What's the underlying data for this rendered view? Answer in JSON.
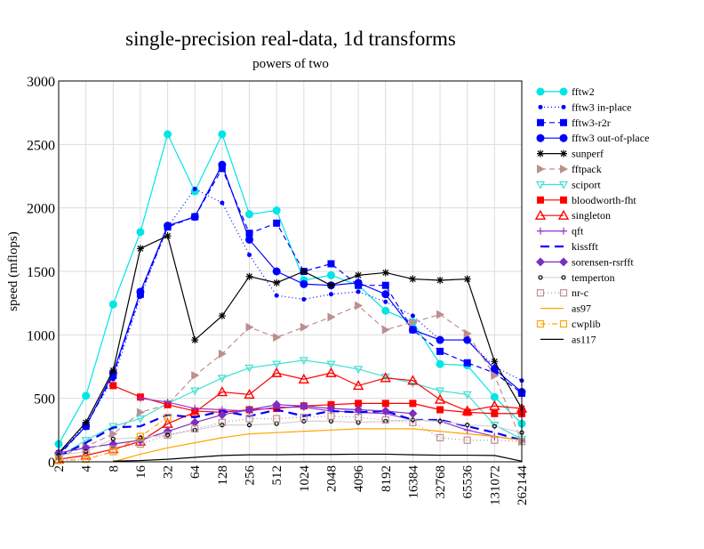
{
  "chart_data": {
    "type": "line",
    "title": "single-precision real-data, 1d transforms",
    "subtitle": "powers of two",
    "xlabel": "",
    "ylabel": "speed (mflops)",
    "ylim": [
      0,
      3000
    ],
    "yticks": [
      "0",
      "500",
      "1000",
      "1500",
      "2000",
      "2500",
      "3000"
    ],
    "grid": true,
    "legend_position": "right",
    "categories": [
      "2",
      "4",
      "8",
      "16",
      "32",
      "64",
      "128",
      "256",
      "512",
      "1024",
      "2048",
      "4096",
      "8192",
      "16384",
      "32768",
      "65536",
      "131072",
      "262144"
    ],
    "series": [
      {
        "name": "fftw2",
        "color": "#00e5e5",
        "dash": "",
        "marker": "circle",
        "values": [
          140,
          520,
          1240,
          1810,
          2580,
          2130,
          2580,
          1950,
          1980,
          1430,
          1470,
          1390,
          1190,
          1100,
          770,
          760,
          510,
          300
        ]
      },
      {
        "name": "fftw3 in-place",
        "color": "#0000ff",
        "dash": "1,3",
        "marker": "dot",
        "values": [
          60,
          300,
          650,
          1300,
          1850,
          2150,
          2040,
          1630,
          1310,
          1280,
          1320,
          1340,
          1260,
          1150,
          960,
          960,
          750,
          640
        ]
      },
      {
        "name": "fftw3-r2r",
        "color": "#0000ff",
        "dash": "6,4",
        "marker": "square",
        "values": [
          50,
          280,
          680,
          1320,
          1850,
          1930,
          2310,
          1800,
          1880,
          1500,
          1560,
          1390,
          1390,
          1040,
          870,
          780,
          700,
          540
        ]
      },
      {
        "name": "fftw3 out-of-place",
        "color": "#0000ff",
        "dash": "",
        "marker": "circle",
        "values": [
          60,
          280,
          700,
          1340,
          1860,
          1930,
          2340,
          1750,
          1500,
          1400,
          1390,
          1410,
          1320,
          1040,
          960,
          960,
          730,
          550
        ]
      },
      {
        "name": "sunperf",
        "color": "#000000",
        "dash": "",
        "marker": "star",
        "values": [
          70,
          310,
          720,
          1680,
          1780,
          960,
          1150,
          1460,
          1410,
          1500,
          1390,
          1470,
          1490,
          1440,
          1430,
          1440,
          790,
          420
        ]
      },
      {
        "name": "fftpack",
        "color": "#bc8f8f",
        "dash": "6,4",
        "marker": "triright",
        "values": [
          40,
          120,
          220,
          390,
          450,
          680,
          850,
          1060,
          980,
          1060,
          1140,
          1230,
          1040,
          1100,
          1160,
          1010,
          680,
          160
        ]
      },
      {
        "name": "sciport",
        "color": "#40e0d0",
        "dash": "",
        "marker": "tridown",
        "values": [
          40,
          170,
          280,
          340,
          460,
          560,
          660,
          740,
          770,
          800,
          770,
          730,
          670,
          620,
          560,
          530,
          290,
          180
        ]
      },
      {
        "name": "bloodworth-fht",
        "color": "#ff0000",
        "dash": "",
        "marker": "square",
        "values": [
          null,
          null,
          600,
          510,
          450,
          400,
          390,
          410,
          420,
          440,
          450,
          460,
          460,
          460,
          410,
          390,
          380,
          380
        ]
      },
      {
        "name": "singleton",
        "color": "#ff0000",
        "dash": "",
        "marker": "triup",
        "values": [
          20,
          50,
          100,
          160,
          300,
          390,
          550,
          530,
          700,
          650,
          700,
          600,
          660,
          640,
          490,
          400,
          440,
          420
        ]
      },
      {
        "name": "qft",
        "color": "#9932cc",
        "dash": "",
        "marker": "plus",
        "values": [
          null,
          null,
          null,
          500,
          470,
          420,
          410,
          400,
          430,
          430,
          400,
          390,
          380,
          330,
          320,
          250,
          200,
          170
        ]
      },
      {
        "name": "kissfft",
        "color": "#0000ff",
        "dash": "10,6",
        "marker": "none",
        "values": [
          40,
          150,
          270,
          280,
          370,
          350,
          400,
          360,
          410,
          360,
          400,
          390,
          400,
          330,
          330,
          280,
          230,
          170
        ]
      },
      {
        "name": "sorensen-rsrfft",
        "color": "#7b2fbf",
        "dash": "",
        "marker": "diamond",
        "values": [
          70,
          110,
          140,
          170,
          240,
          310,
          370,
          410,
          450,
          440,
          420,
          410,
          400,
          380,
          null,
          null,
          null,
          null
        ]
      },
      {
        "name": "temperton",
        "color": "#d3d3d3",
        "dash": "",
        "marker": "smallcircle",
        "values": [
          50,
          80,
          180,
          190,
          210,
          250,
          290,
          290,
          300,
          320,
          320,
          310,
          320,
          330,
          320,
          290,
          280,
          230
        ]
      },
      {
        "name": "nr-c",
        "color": "#bc8f8f",
        "dash": "1,3",
        "marker": "opensquare",
        "values": [
          20,
          60,
          100,
          140,
          210,
          260,
          310,
          340,
          340,
          350,
          360,
          350,
          330,
          310,
          190,
          170,
          170,
          160
        ]
      },
      {
        "name": "as97",
        "color": "#ffa500",
        "dash": "",
        "marker": "none",
        "values": [
          null,
          null,
          0,
          60,
          110,
          150,
          190,
          220,
          230,
          240,
          250,
          260,
          260,
          260,
          240,
          220,
          200,
          170
        ]
      },
      {
        "name": "cwplib",
        "color": "#ffa500",
        "dash": "6,3,1,3",
        "marker": "opensquare",
        "values": [
          10,
          20,
          80,
          200,
          350,
          null,
          null,
          null,
          null,
          null,
          null,
          null,
          null,
          null,
          null,
          null,
          null,
          null
        ]
      },
      {
        "name": "as117",
        "color": "#000000",
        "dash": "",
        "marker": "none",
        "values": [
          null,
          null,
          5,
          10,
          20,
          35,
          50,
          55,
          55,
          58,
          58,
          60,
          60,
          55,
          52,
          52,
          50,
          5
        ]
      }
    ]
  }
}
